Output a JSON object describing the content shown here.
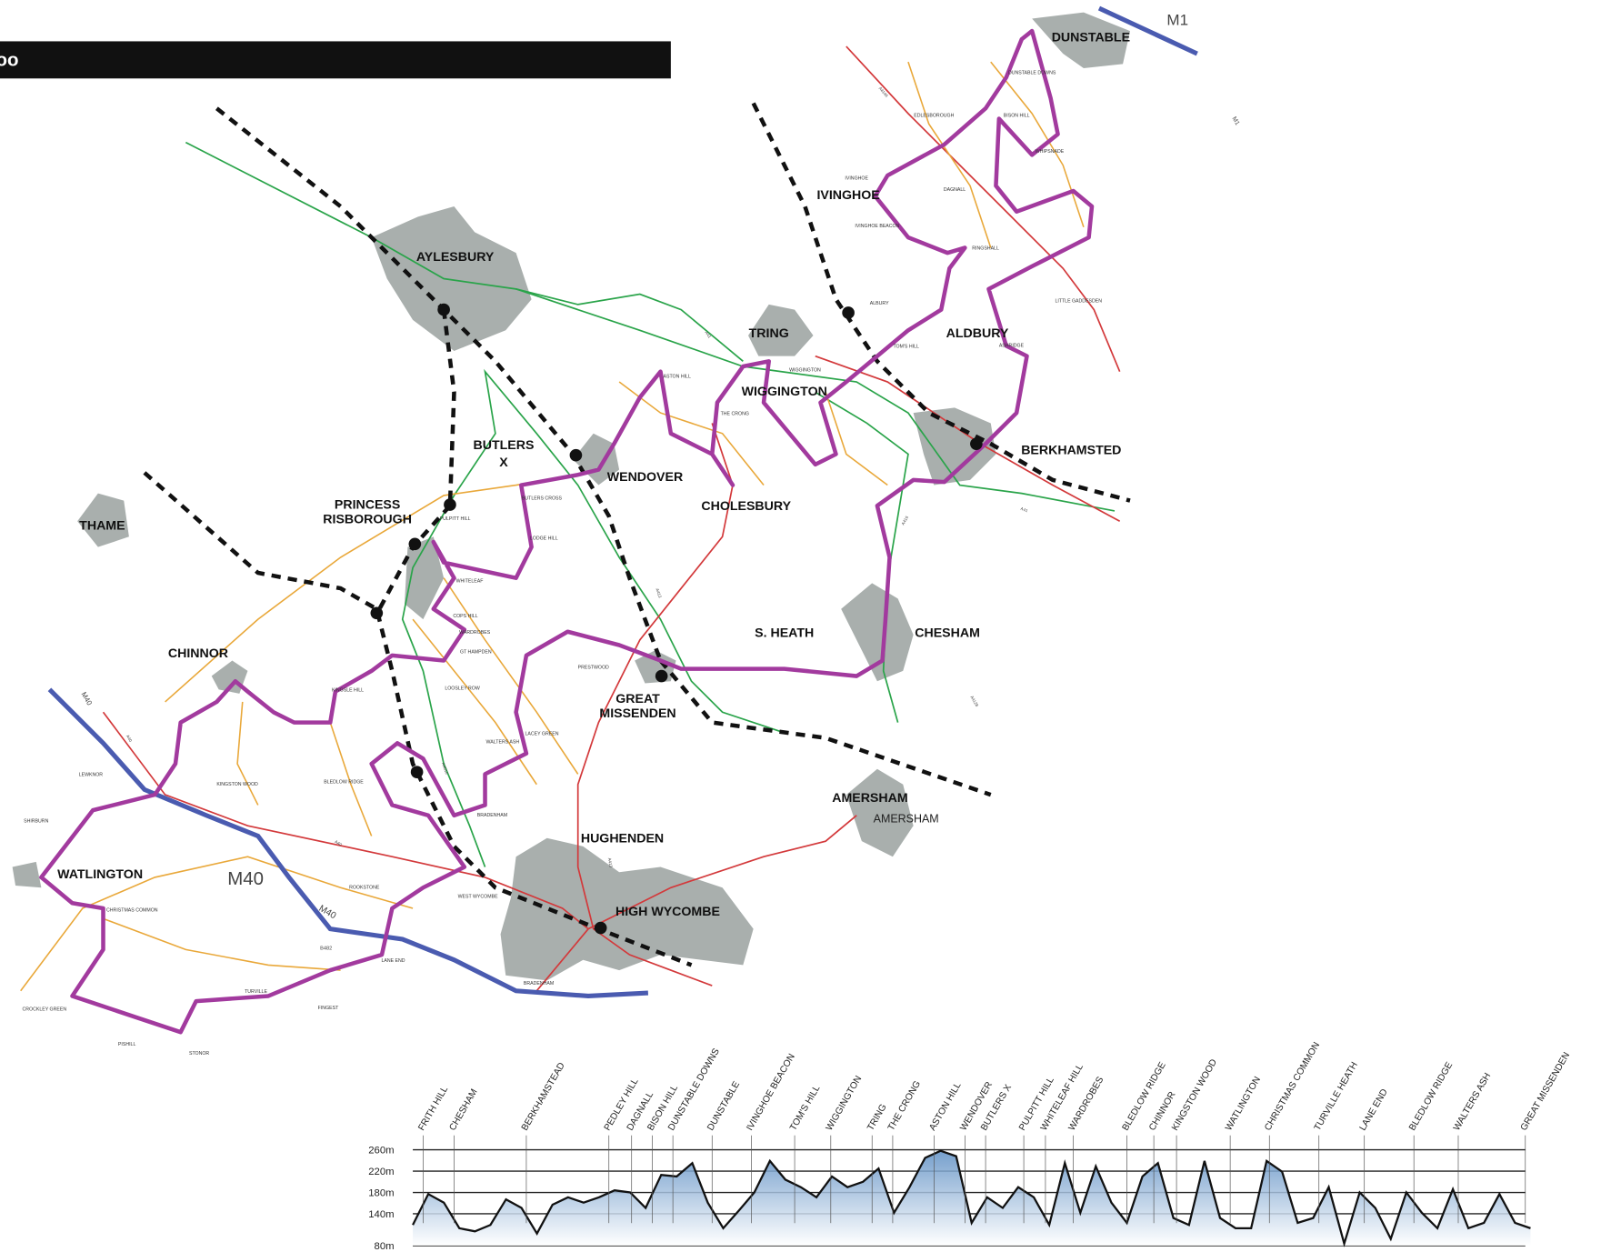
{
  "header": {
    "title": "oo"
  },
  "map": {
    "towns": [
      "DUNSTABLE",
      "IVINGHOE",
      "AYLESBURY",
      "TRING",
      "ALDBURY",
      "WIGGINGTON",
      "BERKHAMSTED",
      "BUTLERS",
      "X",
      "WENDOVER",
      "CHOLESBURY",
      "PRINCESS",
      "RISBOROUGH",
      "THAME",
      "CHESHAM",
      "S. HEATH",
      "CHINNOR",
      "GREAT",
      "MISSENDEN",
      "AMERSHAM",
      "HUGHENDEN",
      "WATLINGTON",
      "HIGH WYCOMBE"
    ],
    "places": [
      "AMERSHAM",
      "DUNSTABLE DOWNS",
      "EDLESBOROUGH",
      "BISON HILL",
      "WHIPSNADE",
      "IVINGHOE",
      "DAGNALL",
      "IVINGHOE BEACON",
      "RINGSHALL",
      "LITTLE GADDESDEN",
      "ALBURY",
      "TOM'S HILL",
      "ASHRIDGE",
      "WIGGINGTON",
      "ASTON HILL",
      "THE CRONG",
      "BUTLERS CROSS",
      "LODGE HILL",
      "PULPITT HILL",
      "WHITELEAF",
      "COPS HILL",
      "WARDROBES",
      "GT HAMPDEN",
      "PRESTWOOD",
      "KINGSLE HILL",
      "LOOSLEY ROW",
      "LACEY GREEN",
      "WALTERS ASH",
      "BRADENHAM",
      "LEWKNOR",
      "KINGSTON WOOD",
      "BLEDLOW RIDGE",
      "SHIRBURN",
      "CHRISTMAS COMMON",
      "ROOKSTONE",
      "WEST WYCOMBE",
      "LANE END",
      "TURVILLE",
      "FINGEST",
      "CROCKLEY GREEN",
      "PISHILL",
      "STONOR",
      "BRADENHAM"
    ],
    "roads": [
      "M1",
      "M1",
      "M40",
      "M40",
      "M40",
      "A41",
      "A41",
      "A4146",
      "A413",
      "A413",
      "A416",
      "A4010",
      "A40",
      "A40",
      "B482",
      "A4128"
    ]
  },
  "profile": {
    "type": "area",
    "values": [
      119,
      177,
      161,
      113,
      107,
      119,
      167,
      151,
      103,
      157,
      171,
      161,
      171,
      184,
      180,
      151,
      213,
      210,
      235,
      161,
      113,
      146,
      180,
      239,
      204,
      190,
      171,
      210,
      190,
      200,
      225,
      142,
      190,
      245,
      258,
      248,
      123,
      171,
      151,
      190,
      171,
      119,
      235,
      142,
      229,
      161,
      123,
      210,
      235,
      132,
      119,
      239,
      132,
      113,
      113,
      239,
      219,
      123,
      132,
      190,
      84,
      180,
      151,
      93,
      180,
      142,
      113,
      186,
      113,
      123,
      177,
      123,
      113
    ],
    "ylim": [
      80,
      260
    ],
    "yticks": [
      {
        "value": 260,
        "label": "260m"
      },
      {
        "value": 220,
        "label": "220m"
      },
      {
        "value": 180,
        "label": "180m"
      },
      {
        "value": 140,
        "label": "140m"
      },
      {
        "value": 80,
        "label": "80m"
      }
    ],
    "waypoints": [
      "FRITH HILL",
      "CHESHAM",
      "BERKHAMSTEAD",
      "PEDLEY HILL",
      "DAGNALL",
      "BISON HILL",
      "DUNSTABLE DOWNS",
      "DUNSTABLE",
      "IVINGHOE BEACON",
      "TOM'S HILL",
      "WIGGINGTON",
      "TRING",
      "THE CRONG",
      "ASTON HILL",
      "WENDOVER",
      "BUTLERS X",
      "PULPITT HILL",
      "WHITELEAF HILL",
      "WARDROBES",
      "BLEDLOW RIDGE",
      "CHINNOR",
      "KINGSTON WOOD",
      "WATLINGTON",
      "CHRISTMAS COMMON",
      "TURVILLE HEATH",
      "LANE END",
      "BLEDLOW RIDGE",
      "WALTERS ASH",
      "GREAT MISSENDEN"
    ]
  }
}
